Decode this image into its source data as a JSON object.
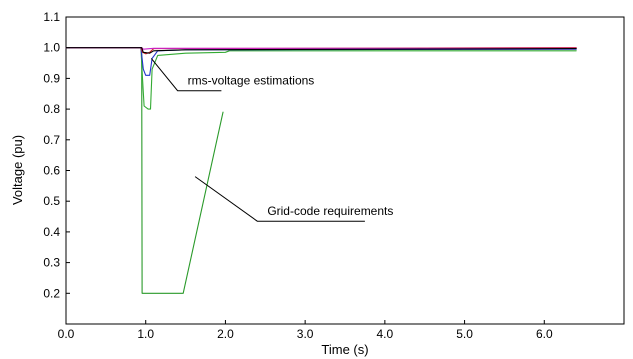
{
  "chart_data": {
    "type": "line",
    "title": "",
    "xlabel": "Time (s)",
    "ylabel": "Voltage (pu)",
    "xlim": [
      0.0,
      7.0
    ],
    "ylim": [
      0.1,
      1.1
    ],
    "x_ticks": [
      0.0,
      1.0,
      2.0,
      3.0,
      4.0,
      5.0,
      6.0
    ],
    "x_tick_labels": [
      "0.0",
      "1.0",
      "2.0",
      "3.0",
      "4.0",
      "5.0",
      "6.0"
    ],
    "y_ticks": [
      0.2,
      0.3,
      0.4,
      0.5,
      0.6,
      0.7,
      0.8,
      0.9,
      1.0,
      1.1
    ],
    "y_tick_labels": [
      "0.2",
      "0.3",
      "0.4",
      "0.5",
      "0.6",
      "0.7",
      "0.8",
      "0.9",
      "1.0",
      "1.1"
    ],
    "grid": false,
    "legend": "none",
    "series": [
      {
        "color": "#2a9a2a",
        "points": [
          [
            0.0,
            1.0
          ],
          [
            0.95,
            1.0
          ],
          [
            0.955,
            0.2
          ],
          [
            1.47,
            0.2
          ],
          [
            1.97,
            0.79
          ]
        ]
      },
      {
        "color": "#33aa33",
        "points": [
          [
            0.0,
            1.0
          ],
          [
            0.94,
            1.0
          ],
          [
            0.96,
            0.9
          ],
          [
            0.98,
            0.81
          ],
          [
            1.03,
            0.8
          ],
          [
            1.06,
            0.8
          ],
          [
            1.08,
            0.93
          ],
          [
            1.15,
            0.975
          ],
          [
            1.5,
            0.982
          ],
          [
            2.0,
            0.985
          ],
          [
            2.05,
            0.99
          ],
          [
            3.0,
            0.99
          ],
          [
            6.4,
            0.99
          ]
        ]
      },
      {
        "color": "#2233cc",
        "points": [
          [
            0.0,
            1.0
          ],
          [
            0.94,
            1.0
          ],
          [
            0.97,
            0.93
          ],
          [
            1.0,
            0.91
          ],
          [
            1.05,
            0.91
          ],
          [
            1.08,
            0.965
          ],
          [
            1.15,
            0.99
          ],
          [
            1.5,
            0.993
          ],
          [
            6.4,
            0.995
          ]
        ]
      },
      {
        "color": "#cc2222",
        "points": [
          [
            0.0,
            1.0
          ],
          [
            0.94,
            1.0
          ],
          [
            0.96,
            0.985
          ],
          [
            1.0,
            0.98
          ],
          [
            1.05,
            0.985
          ],
          [
            1.1,
            0.997
          ],
          [
            6.4,
            1.0
          ]
        ]
      },
      {
        "color": "#cc22cc",
        "points": [
          [
            0.0,
            1.0
          ],
          [
            0.95,
            1.0
          ],
          [
            0.97,
            0.995
          ],
          [
            1.1,
            0.998
          ],
          [
            6.4,
            0.998
          ]
        ]
      },
      {
        "color": "#000000",
        "points": [
          [
            0.0,
            1.0
          ],
          [
            0.95,
            1.0
          ],
          [
            0.97,
            0.985
          ],
          [
            1.05,
            0.982
          ],
          [
            1.1,
            0.99
          ],
          [
            1.5,
            0.993
          ],
          [
            6.4,
            0.997
          ]
        ]
      }
    ],
    "annotations": [
      {
        "text": "rms-voltage estimations",
        "pointer": [
          [
            1.07,
            0.965
          ],
          [
            1.4,
            0.86
          ],
          [
            1.95,
            0.86
          ]
        ]
      },
      {
        "text": "Grid-code requirements",
        "pointer": [
          [
            1.62,
            0.58
          ],
          [
            2.4,
            0.435
          ],
          [
            3.75,
            0.435
          ]
        ]
      }
    ]
  }
}
